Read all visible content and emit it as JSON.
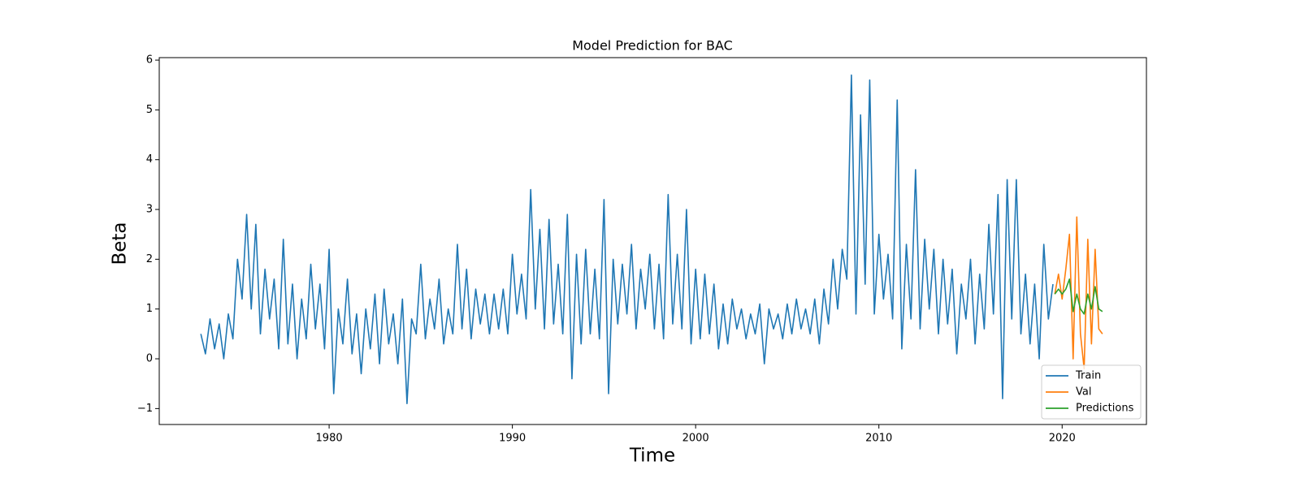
{
  "chart_data": {
    "type": "line",
    "title": "Model Prediction for BAC",
    "xlabel": "Time",
    "ylabel": "Beta",
    "xlim": [
      1970.73,
      2024.6
    ],
    "xticks": [
      1980,
      1990,
      2000,
      2010,
      2020
    ],
    "ylim": [
      -1.32,
      6.05
    ],
    "yticks": [
      {
        "value": -1,
        "label": "−1"
      },
      0,
      1,
      2,
      3,
      4,
      5,
      6
    ],
    "legend": "lower right",
    "series": [
      {
        "name": "Train",
        "color": "#1f77b4",
        "x": [
          1973,
          1973.25,
          1973.5,
          1973.75,
          1974,
          1974.25,
          1974.5,
          1974.75,
          1975,
          1975.25,
          1975.5,
          1975.75,
          1976,
          1976.25,
          1976.5,
          1976.75,
          1977,
          1977.25,
          1977.5,
          1977.75,
          1978,
          1978.25,
          1978.5,
          1978.75,
          1979,
          1979.25,
          1979.5,
          1979.75,
          1980,
          1980.25,
          1980.5,
          1980.75,
          1981,
          1981.25,
          1981.5,
          1981.75,
          1982,
          1982.25,
          1982.5,
          1982.75,
          1983,
          1983.25,
          1983.5,
          1983.75,
          1984,
          1984.25,
          1984.5,
          1984.75,
          1985,
          1985.25,
          1985.5,
          1985.75,
          1986,
          1986.25,
          1986.5,
          1986.75,
          1987,
          1987.25,
          1987.5,
          1987.75,
          1988,
          1988.25,
          1988.5,
          1988.75,
          1989,
          1989.25,
          1989.5,
          1989.75,
          1990,
          1990.25,
          1990.5,
          1990.75,
          1991,
          1991.25,
          1991.5,
          1991.75,
          1992,
          1992.25,
          1992.5,
          1992.75,
          1993,
          1993.25,
          1993.5,
          1993.75,
          1994,
          1994.25,
          1994.5,
          1994.75,
          1995,
          1995.25,
          1995.5,
          1995.75,
          1996,
          1996.25,
          1996.5,
          1996.75,
          1997,
          1997.25,
          1997.5,
          1997.75,
          1998,
          1998.25,
          1998.5,
          1998.75,
          1999,
          1999.25,
          1999.5,
          1999.75,
          2000,
          2000.25,
          2000.5,
          2000.75,
          2001,
          2001.25,
          2001.5,
          2001.75,
          2002,
          2002.25,
          2002.5,
          2002.75,
          2003,
          2003.25,
          2003.5,
          2003.75,
          2004,
          2004.25,
          2004.5,
          2004.75,
          2005,
          2005.25,
          2005.5,
          2005.75,
          2006,
          2006.25,
          2006.5,
          2006.75,
          2007,
          2007.25,
          2007.5,
          2007.75,
          2008,
          2008.25,
          2008.5,
          2008.75,
          2009,
          2009.25,
          2009.5,
          2009.75,
          2010,
          2010.25,
          2010.5,
          2010.75,
          2011,
          2011.25,
          2011.5,
          2011.75,
          2012,
          2012.25,
          2012.5,
          2012.75,
          2013,
          2013.25,
          2013.5,
          2013.75,
          2014,
          2014.25,
          2014.5,
          2014.75,
          2015,
          2015.25,
          2015.5,
          2015.75,
          2016,
          2016.25,
          2016.5,
          2016.75,
          2017,
          2017.25,
          2017.5,
          2017.75,
          2018,
          2018.25,
          2018.5,
          2018.75,
          2019,
          2019.25,
          2019.5
        ],
        "values": [
          0.5,
          0.1,
          0.8,
          0.2,
          0.7,
          0.0,
          0.9,
          0.4,
          2.0,
          1.2,
          2.9,
          1.0,
          2.7,
          0.5,
          1.8,
          0.8,
          1.6,
          0.2,
          2.4,
          0.3,
          1.5,
          0.0,
          1.2,
          0.4,
          1.9,
          0.6,
          1.5,
          0.2,
          2.2,
          -0.7,
          1.0,
          0.3,
          1.6,
          0.1,
          0.9,
          -0.3,
          1.0,
          0.2,
          1.3,
          -0.1,
          1.4,
          0.3,
          0.9,
          -0.1,
          1.2,
          -0.9,
          0.8,
          0.5,
          1.9,
          0.4,
          1.2,
          0.6,
          1.6,
          0.3,
          1.0,
          0.5,
          2.3,
          0.6,
          1.8,
          0.4,
          1.4,
          0.7,
          1.3,
          0.5,
          1.3,
          0.6,
          1.4,
          0.5,
          2.1,
          0.9,
          1.7,
          0.8,
          3.4,
          1.0,
          2.6,
          0.6,
          2.8,
          0.7,
          1.9,
          0.5,
          2.9,
          -0.4,
          2.1,
          0.3,
          2.2,
          0.5,
          1.8,
          0.4,
          3.2,
          -0.7,
          2.0,
          0.7,
          1.9,
          0.9,
          2.3,
          0.6,
          1.8,
          1.0,
          2.1,
          0.6,
          1.9,
          0.4,
          3.3,
          0.7,
          2.1,
          0.6,
          3.0,
          0.3,
          1.8,
          0.4,
          1.7,
          0.5,
          1.5,
          0.2,
          1.1,
          0.3,
          1.2,
          0.6,
          1.0,
          0.4,
          0.9,
          0.5,
          1.1,
          -0.1,
          1.0,
          0.6,
          0.9,
          0.4,
          1.1,
          0.5,
          1.2,
          0.6,
          1.0,
          0.5,
          1.2,
          0.3,
          1.4,
          0.7,
          2.0,
          1.0,
          2.2,
          1.6,
          5.7,
          0.9,
          4.9,
          1.5,
          5.6,
          0.9,
          2.5,
          1.2,
          2.1,
          0.8,
          5.2,
          0.2,
          2.3,
          0.8,
          3.8,
          0.6,
          2.4,
          1.0,
          2.2,
          0.5,
          2.0,
          0.7,
          1.8,
          0.1,
          1.5,
          0.8,
          2.0,
          0.3,
          1.7,
          0.6,
          2.7,
          0.9,
          3.3,
          -0.8,
          3.6,
          0.8,
          3.6,
          0.5,
          1.7,
          0.3,
          1.5,
          0.0,
          2.3,
          0.8,
          1.5
        ]
      },
      {
        "name": "Val",
        "color": "#ff7f0e",
        "x": [
          2019.6,
          2019.8,
          2020,
          2020.2,
          2020.4,
          2020.6,
          2020.8,
          2021,
          2021.2,
          2021.4,
          2021.6,
          2021.8,
          2022,
          2022.2
        ],
        "values": [
          1.3,
          1.7,
          1.2,
          1.8,
          2.5,
          0.0,
          2.85,
          0.5,
          -0.2,
          2.4,
          0.3,
          2.2,
          0.6,
          0.5
        ]
      },
      {
        "name": "Predictions",
        "color": "#2ca02c",
        "x": [
          2019.6,
          2019.8,
          2020,
          2020.2,
          2020.4,
          2020.6,
          2020.8,
          2021,
          2021.2,
          2021.4,
          2021.6,
          2021.8,
          2022,
          2022.2
        ],
        "values": [
          1.3,
          1.4,
          1.3,
          1.4,
          1.6,
          0.95,
          1.3,
          1.0,
          0.9,
          1.3,
          1.0,
          1.45,
          1.0,
          0.95
        ]
      }
    ]
  }
}
